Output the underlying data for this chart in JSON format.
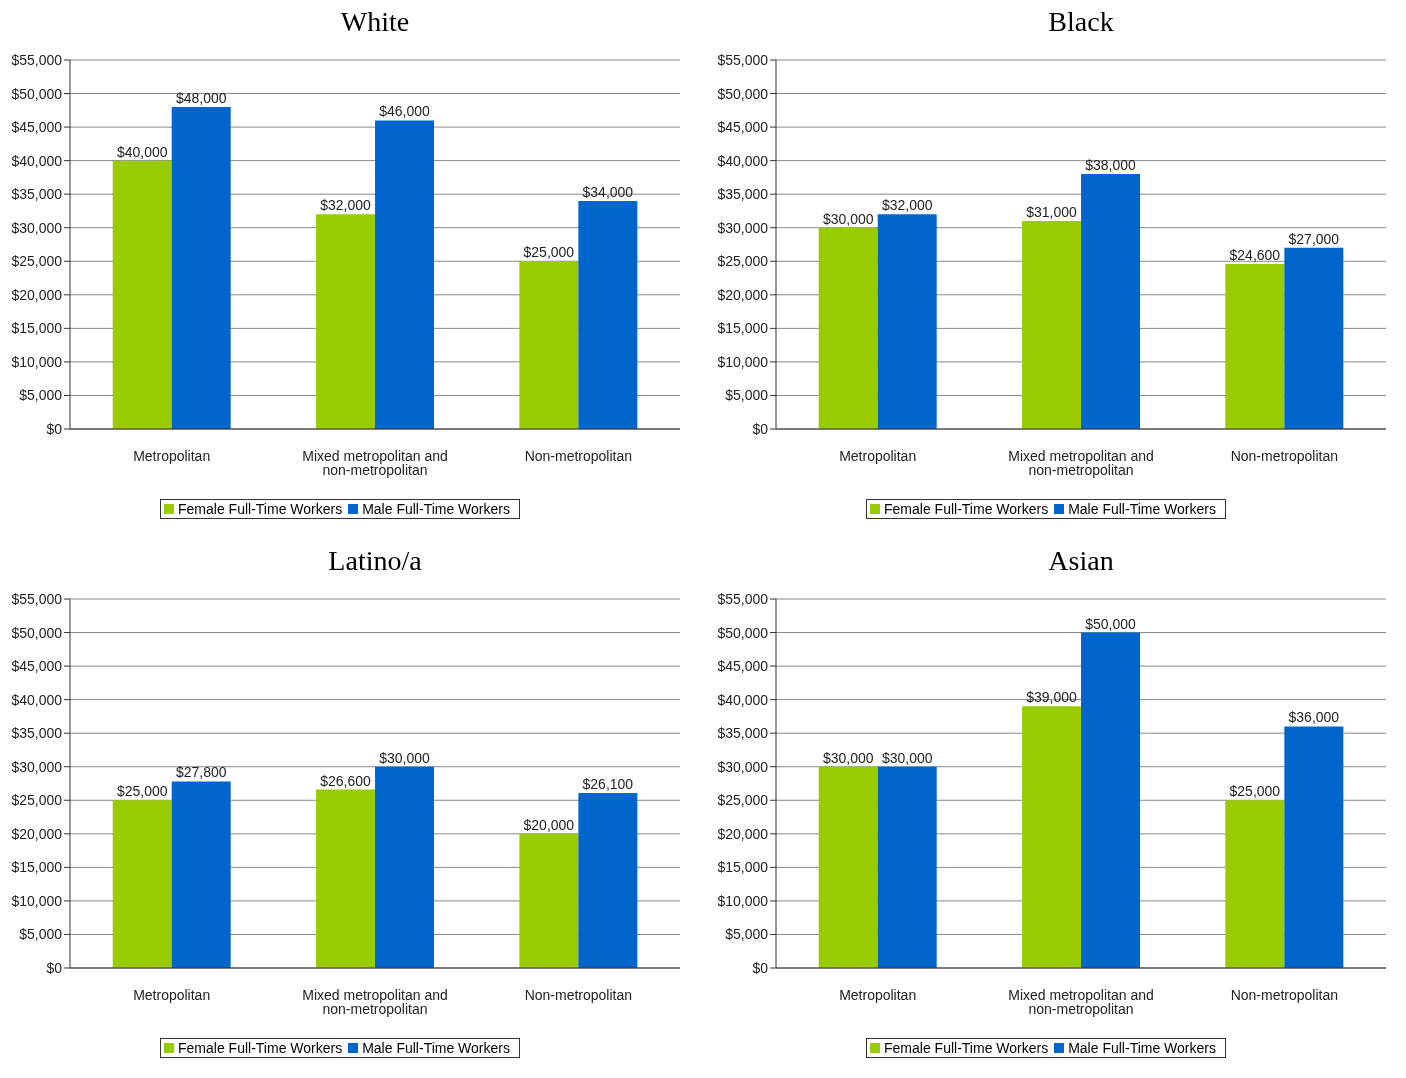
{
  "chart_data": [
    {
      "type": "bar",
      "title": "White",
      "categories": [
        "Metropolitan",
        "Mixed metropolitan and non-metropolitan",
        "Non-metropolitan"
      ],
      "series": [
        {
          "name": "Female Full-Time Workers",
          "color": "#99cc00",
          "values": [
            40000,
            32000,
            25000
          ],
          "value_labels": [
            "$40,000",
            "$32,000",
            "$25,000"
          ]
        },
        {
          "name": "Male Full-Time Workers",
          "color": "#0066cc",
          "values": [
            48000,
            46000,
            34000
          ],
          "value_labels": [
            "$48,000",
            "$46,000",
            "$34,000"
          ]
        }
      ],
      "ylim": [
        0,
        55000
      ],
      "yticks": [
        {
          "value": 0,
          "label": "$0"
        },
        {
          "value": 5000,
          "label": "$5,000"
        },
        {
          "value": 10000,
          "label": "$10,000"
        },
        {
          "value": 15000,
          "label": "$15,000"
        },
        {
          "value": 20000,
          "label": "$20,000"
        },
        {
          "value": 25000,
          "label": "$25,000"
        },
        {
          "value": 30000,
          "label": "$30,000"
        },
        {
          "value": 35000,
          "label": "$35,000"
        },
        {
          "value": 40000,
          "label": "$40,000"
        },
        {
          "value": 45000,
          "label": "$45,000"
        },
        {
          "value": 50000,
          "label": "$50,000"
        },
        {
          "value": 55000,
          "label": "$55,000"
        }
      ],
      "grid": "y",
      "legend": "bottom"
    },
    {
      "type": "bar",
      "title": "Black",
      "categories": [
        "Metropolitan",
        "Mixed metropolitan and non-metropolitan",
        "Non-metropolitan"
      ],
      "series": [
        {
          "name": "Female Full-Time Workers",
          "color": "#99cc00",
          "values": [
            30000,
            31000,
            24600
          ],
          "value_labels": [
            "$30,000",
            "$31,000",
            "$24,600"
          ]
        },
        {
          "name": "Male Full-Time Workers",
          "color": "#0066cc",
          "values": [
            32000,
            38000,
            27000
          ],
          "value_labels": [
            "$32,000",
            "$38,000",
            "$27,000"
          ]
        }
      ],
      "ylim": [
        0,
        55000
      ],
      "yticks": [
        {
          "value": 0,
          "label": "$0"
        },
        {
          "value": 5000,
          "label": "$5,000"
        },
        {
          "value": 10000,
          "label": "$10,000"
        },
        {
          "value": 15000,
          "label": "$15,000"
        },
        {
          "value": 20000,
          "label": "$20,000"
        },
        {
          "value": 25000,
          "label": "$25,000"
        },
        {
          "value": 30000,
          "label": "$30,000"
        },
        {
          "value": 35000,
          "label": "$35,000"
        },
        {
          "value": 40000,
          "label": "$40,000"
        },
        {
          "value": 45000,
          "label": "$45,000"
        },
        {
          "value": 50000,
          "label": "$50,000"
        },
        {
          "value": 55000,
          "label": "$55,000"
        }
      ],
      "grid": "y",
      "legend": "bottom"
    },
    {
      "type": "bar",
      "title": "Latino/a",
      "categories": [
        "Metropolitan",
        "Mixed metropolitan and non-metropolitan",
        "Non-metropolitan"
      ],
      "series": [
        {
          "name": "Female Full-Time Workers",
          "color": "#99cc00",
          "values": [
            25000,
            26600,
            20000
          ],
          "value_labels": [
            "$25,000",
            "$26,600",
            "$20,000"
          ]
        },
        {
          "name": "Male Full-Time Workers",
          "color": "#0066cc",
          "values": [
            27800,
            30000,
            26100
          ],
          "value_labels": [
            "$27,800",
            "$30,000",
            "$26,100"
          ]
        }
      ],
      "ylim": [
        0,
        55000
      ],
      "yticks": [
        {
          "value": 0,
          "label": "$0"
        },
        {
          "value": 5000,
          "label": "$5,000"
        },
        {
          "value": 10000,
          "label": "$10,000"
        },
        {
          "value": 15000,
          "label": "$15,000"
        },
        {
          "value": 20000,
          "label": "$20,000"
        },
        {
          "value": 25000,
          "label": "$25,000"
        },
        {
          "value": 30000,
          "label": "$30,000"
        },
        {
          "value": 35000,
          "label": "$35,000"
        },
        {
          "value": 40000,
          "label": "$40,000"
        },
        {
          "value": 45000,
          "label": "$45,000"
        },
        {
          "value": 50000,
          "label": "$50,000"
        },
        {
          "value": 55000,
          "label": "$55,000"
        }
      ],
      "grid": "y",
      "legend": "bottom"
    },
    {
      "type": "bar",
      "title": "Asian",
      "categories": [
        "Metropolitan",
        "Mixed metropolitan and non-metropolitan",
        "Non-metropolitan"
      ],
      "series": [
        {
          "name": "Female Full-Time Workers",
          "color": "#99cc00",
          "values": [
            30000,
            39000,
            25000
          ],
          "value_labels": [
            "$30,000",
            "$39,000",
            "$25,000"
          ]
        },
        {
          "name": "Male Full-Time Workers",
          "color": "#0066cc",
          "values": [
            30000,
            50000,
            36000
          ],
          "value_labels": [
            "$30,000",
            "$50,000",
            "$36,000"
          ]
        }
      ],
      "ylim": [
        0,
        55000
      ],
      "yticks": [
        {
          "value": 0,
          "label": "$0"
        },
        {
          "value": 5000,
          "label": "$5,000"
        },
        {
          "value": 10000,
          "label": "$10,000"
        },
        {
          "value": 15000,
          "label": "$15,000"
        },
        {
          "value": 20000,
          "label": "$20,000"
        },
        {
          "value": 25000,
          "label": "$25,000"
        },
        {
          "value": 30000,
          "label": "$30,000"
        },
        {
          "value": 35000,
          "label": "$35,000"
        },
        {
          "value": 40000,
          "label": "$40,000"
        },
        {
          "value": 45000,
          "label": "$45,000"
        },
        {
          "value": 50000,
          "label": "$50,000"
        },
        {
          "value": 55000,
          "label": "$55,000"
        }
      ],
      "grid": "y",
      "legend": "bottom"
    }
  ]
}
